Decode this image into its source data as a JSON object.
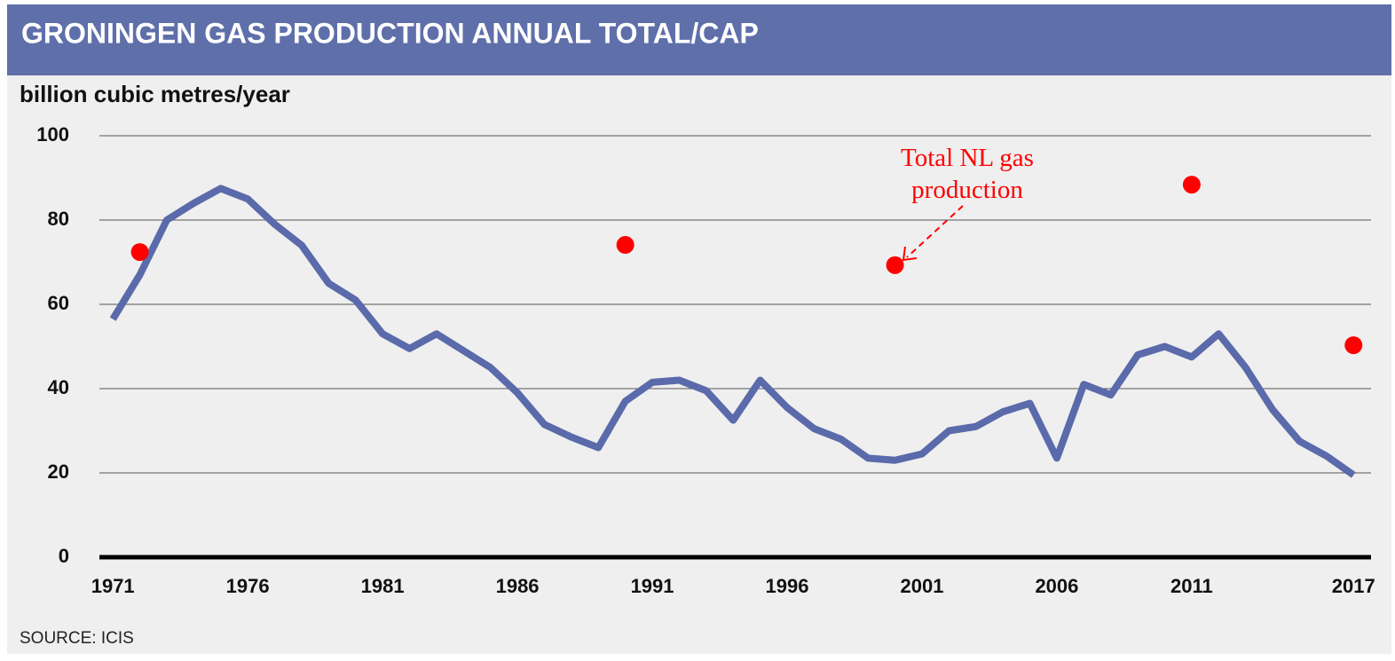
{
  "chart_data": {
    "type": "line",
    "title": "GRONINGEN GAS PRODUCTION ANNUAL TOTAL/CAP",
    "y_label": "billion cubic metres/year",
    "source": "SOURCE: ICIS",
    "x": [
      1971,
      1972,
      1973,
      1974,
      1975,
      1976,
      1977,
      1978,
      1979,
      1980,
      1981,
      1982,
      1983,
      1984,
      1985,
      1986,
      1987,
      1988,
      1989,
      1990,
      1991,
      1992,
      1993,
      1994,
      1995,
      1996,
      1997,
      1998,
      1999,
      2000,
      2001,
      2002,
      2003,
      2004,
      2005,
      2006,
      2007,
      2008,
      2009,
      2010,
      2011,
      2012,
      2013,
      2014,
      2015,
      2016,
      2017
    ],
    "series": [
      {
        "color": "#5a6aaa",
        "values": [
          56.5,
          67,
          80,
          84,
          87.5,
          85,
          79,
          74,
          65,
          61,
          53,
          49.5,
          53,
          49,
          45,
          39,
          31.5,
          28.5,
          26,
          37,
          41.5,
          42,
          39.5,
          32.5,
          42,
          35.5,
          30.5,
          28,
          23.5,
          23,
          24.5,
          30,
          31,
          34.5,
          36.5,
          23.5,
          41,
          38.5,
          48,
          50,
          47.5,
          53,
          45,
          35,
          27.5,
          24,
          19.5
        ]
      }
    ],
    "points": {
      "name": "Total NL gas production",
      "color": "#ff0000",
      "x": [
        1972,
        1990,
        2000,
        2011,
        2017
      ],
      "y": [
        72.4,
        74.1,
        69.3,
        88.4,
        50.3
      ]
    },
    "xlim": [
      1970.5,
      2017.65
    ],
    "xticks": [
      1971,
      1976,
      1981,
      1986,
      1991,
      1996,
      2001,
      2006,
      2011,
      2017
    ],
    "ylim": [
      0,
      100
    ],
    "yticks": [
      0,
      20,
      40,
      60,
      80,
      100
    ],
    "grid": true
  }
}
